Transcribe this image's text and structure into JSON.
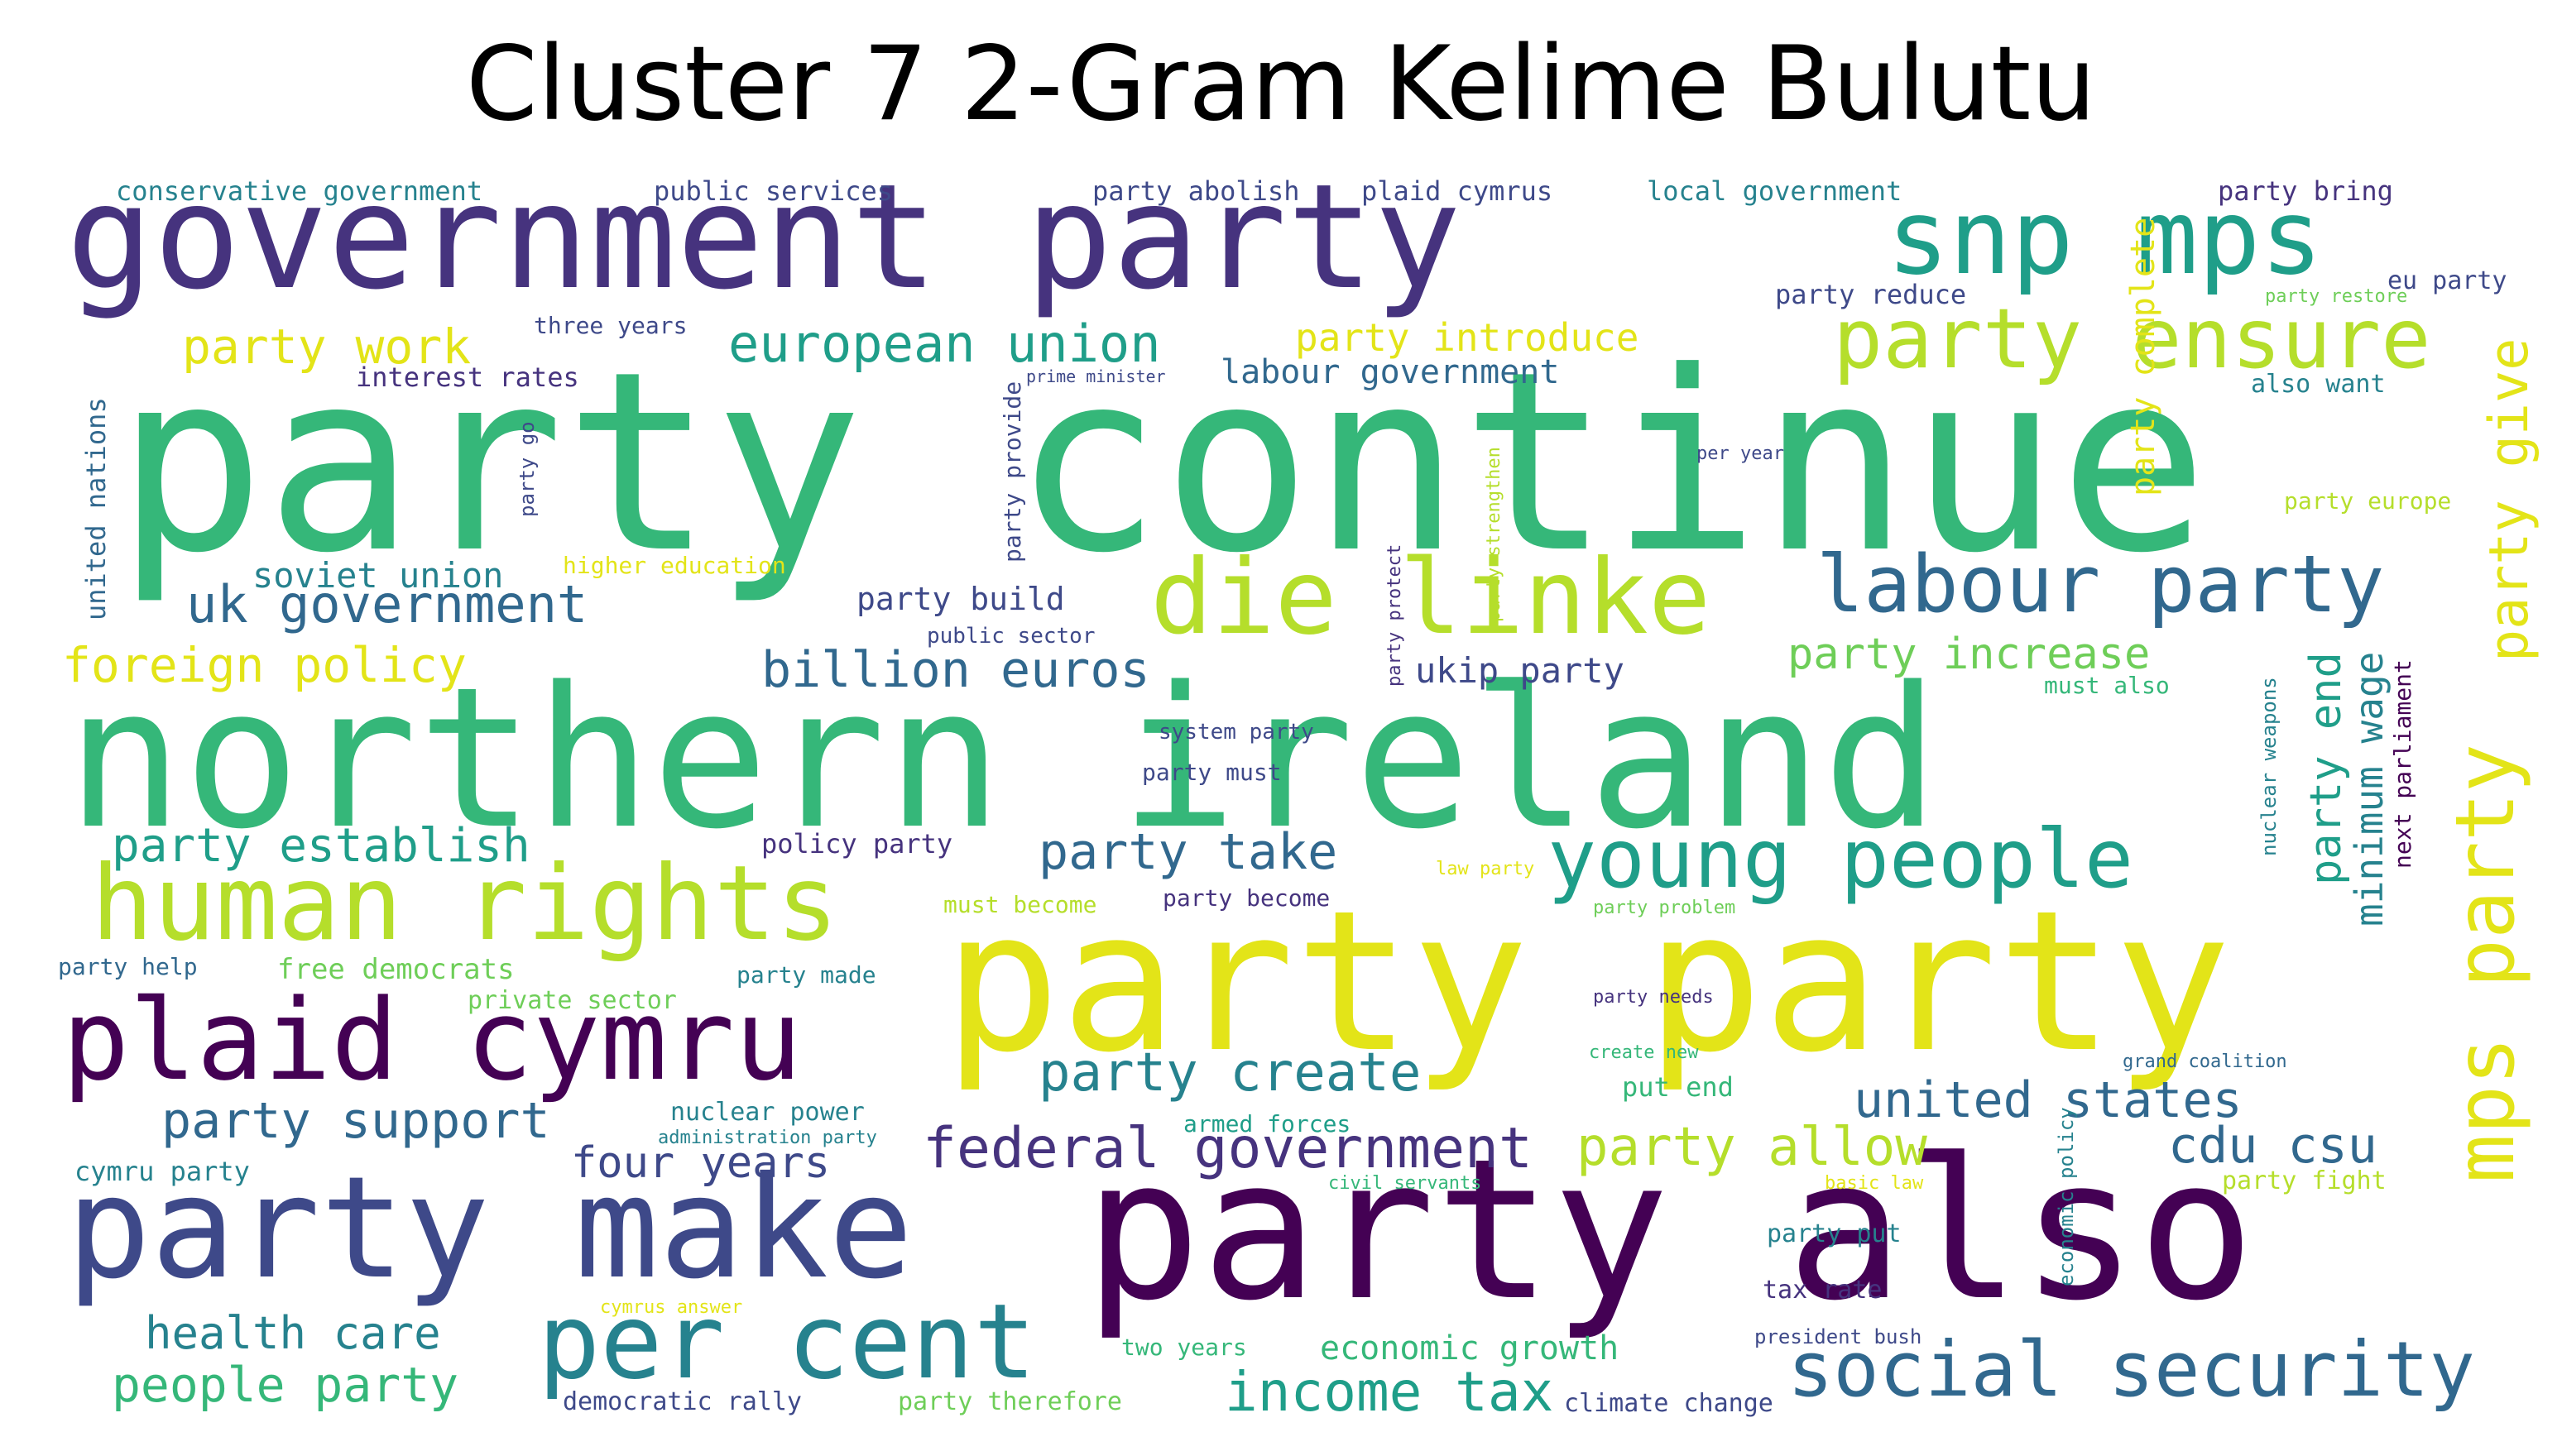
{
  "title": "Cluster 7 2-Gram Kelime Bulutu",
  "palette": {
    "purple": "#46337e",
    "dark_purple": "#440154",
    "indigo": "#3e4989",
    "blue": "#31688e",
    "teal": "#26828e",
    "teal2": "#1f9e89",
    "green": "#35b779",
    "green2": "#6ece58",
    "lime": "#b5de2b",
    "yellow": "#e3e418"
  },
  "words": [
    {
      "text": "party continue",
      "color": "green"
    },
    {
      "text": "northern ireland",
      "color": "green"
    },
    {
      "text": "party party",
      "color": "yellow"
    },
    {
      "text": "party also",
      "color": "dark_purple"
    },
    {
      "text": "government party",
      "color": "purple"
    },
    {
      "text": "party make",
      "color": "indigo"
    },
    {
      "text": "plaid cymru",
      "color": "dark_purple"
    },
    {
      "text": "human rights",
      "color": "lime"
    },
    {
      "text": "die linke",
      "color": "lime"
    },
    {
      "text": "per cent",
      "color": "teal"
    },
    {
      "text": "snp mps",
      "color": "teal2"
    },
    {
      "text": "party ensure",
      "color": "lime"
    },
    {
      "text": "young people",
      "color": "teal2"
    },
    {
      "text": "labour party",
      "color": "blue"
    },
    {
      "text": "social security",
      "color": "blue"
    },
    {
      "text": "mps party",
      "color": "yellow"
    },
    {
      "text": "party give",
      "color": "yellow"
    },
    {
      "text": "federal government",
      "color": "purple"
    },
    {
      "text": "european union",
      "color": "teal2"
    },
    {
      "text": "uk government",
      "color": "blue"
    },
    {
      "text": "party create",
      "color": "teal"
    },
    {
      "text": "party allow",
      "color": "lime"
    },
    {
      "text": "united states",
      "color": "blue"
    },
    {
      "text": "party support",
      "color": "blue"
    },
    {
      "text": "cdu csu",
      "color": "blue"
    },
    {
      "text": "party take",
      "color": "blue"
    },
    {
      "text": "billion euros",
      "color": "blue"
    },
    {
      "text": "income tax",
      "color": "teal2"
    },
    {
      "text": "people party",
      "color": "green"
    },
    {
      "text": "party establish",
      "color": "teal2"
    },
    {
      "text": "foreign policy",
      "color": "yellow"
    },
    {
      "text": "party work",
      "color": "yellow"
    },
    {
      "text": "health care",
      "color": "teal"
    },
    {
      "text": "four years",
      "color": "indigo"
    },
    {
      "text": "party increase",
      "color": "green2"
    },
    {
      "text": "party end",
      "color": "teal2"
    },
    {
      "text": "minimum wage",
      "color": "teal"
    },
    {
      "text": "party introduce",
      "color": "yellow"
    },
    {
      "text": "labour government",
      "color": "blue"
    },
    {
      "text": "party complete",
      "color": "yellow"
    },
    {
      "text": "ukip party",
      "color": "indigo"
    },
    {
      "text": "soviet union",
      "color": "teal"
    },
    {
      "text": "economic growth",
      "color": "green"
    },
    {
      "text": "party build",
      "color": "indigo"
    },
    {
      "text": "conservative government",
      "color": "teal"
    },
    {
      "text": "public services",
      "color": "indigo"
    },
    {
      "text": "party abolish",
      "color": "indigo"
    },
    {
      "text": "plaid cymrus",
      "color": "indigo"
    },
    {
      "text": "local government",
      "color": "teal"
    },
    {
      "text": "party bring",
      "color": "purple"
    },
    {
      "text": "eu party",
      "color": "indigo"
    },
    {
      "text": "party reduce",
      "color": "indigo"
    },
    {
      "text": "party restore",
      "color": "green2"
    },
    {
      "text": "three years",
      "color": "indigo"
    },
    {
      "text": "interest rates",
      "color": "purple"
    },
    {
      "text": "prime minister",
      "color": "indigo"
    },
    {
      "text": "party provide",
      "color": "indigo"
    },
    {
      "text": "also want",
      "color": "teal"
    },
    {
      "text": "party europe",
      "color": "lime"
    },
    {
      "text": "per year",
      "color": "indigo"
    },
    {
      "text": "united nations",
      "color": "blue"
    },
    {
      "text": "party go",
      "color": "indigo"
    },
    {
      "text": "higher education",
      "color": "yellow"
    },
    {
      "text": "party strengthen",
      "color": "lime"
    },
    {
      "text": "party protect",
      "color": "purple"
    },
    {
      "text": "public sector",
      "color": "indigo"
    },
    {
      "text": "must also",
      "color": "green"
    },
    {
      "text": "nuclear weapons",
      "color": "teal"
    },
    {
      "text": "next parliament",
      "color": "dark_purple"
    },
    {
      "text": "system party",
      "color": "indigo"
    },
    {
      "text": "party must",
      "color": "indigo"
    },
    {
      "text": "policy party",
      "color": "purple"
    },
    {
      "text": "law party",
      "color": "yellow"
    },
    {
      "text": "must become",
      "color": "lime"
    },
    {
      "text": "party become",
      "color": "purple"
    },
    {
      "text": "party problem",
      "color": "green2"
    },
    {
      "text": "party help",
      "color": "blue"
    },
    {
      "text": "free democrats",
      "color": "green2"
    },
    {
      "text": "party made",
      "color": "teal"
    },
    {
      "text": "private sector",
      "color": "green2"
    },
    {
      "text": "party needs",
      "color": "purple"
    },
    {
      "text": "create new",
      "color": "green"
    },
    {
      "text": "grand coalition",
      "color": "blue"
    },
    {
      "text": "economic policy",
      "color": "teal"
    },
    {
      "text": "put end",
      "color": "green"
    },
    {
      "text": "nuclear power",
      "color": "teal"
    },
    {
      "text": "armed forces",
      "color": "teal2"
    },
    {
      "text": "administration party",
      "color": "teal"
    },
    {
      "text": "cymru party",
      "color": "teal"
    },
    {
      "text": "civil servants",
      "color": "green"
    },
    {
      "text": "basic law",
      "color": "yellow"
    },
    {
      "text": "party fight",
      "color": "lime"
    },
    {
      "text": "party put",
      "color": "teal"
    },
    {
      "text": "tax rate",
      "color": "purple"
    },
    {
      "text": "cymrus answer",
      "color": "yellow"
    },
    {
      "text": "president bush",
      "color": "indigo"
    },
    {
      "text": "two years",
      "color": "green"
    },
    {
      "text": "democratic rally",
      "color": "indigo"
    },
    {
      "text": "party therefore",
      "color": "green2"
    },
    {
      "text": "climate change",
      "color": "indigo"
    }
  ]
}
